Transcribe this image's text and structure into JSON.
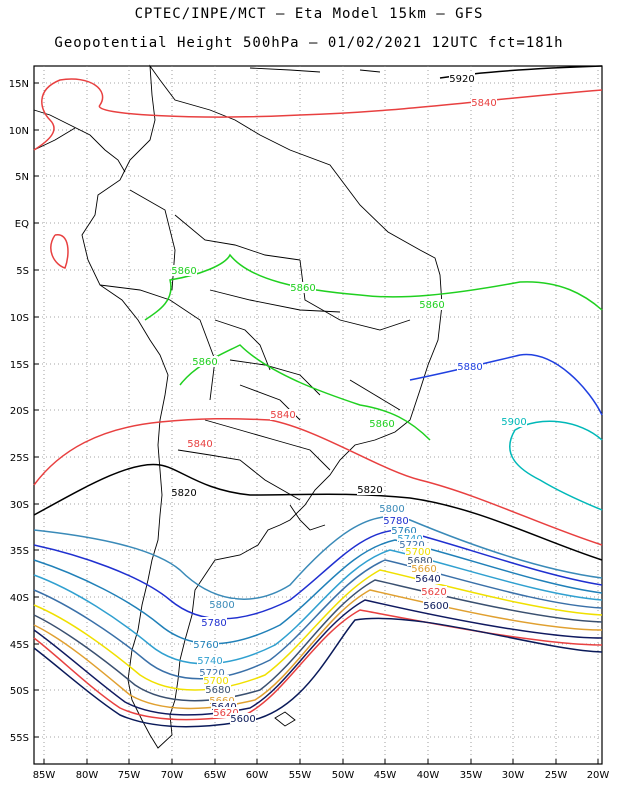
{
  "header": {
    "line1": "CPTEC/INPE/MCT – Eta Model 15km – GFS",
    "line2": "Geopotential Height 500hPa – 01/02/2021 12UTC fct=181h"
  },
  "map": {
    "lat_labels": [
      "15N",
      "10N",
      "5N",
      "EQ",
      "5S",
      "10S",
      "15S",
      "20S",
      "25S",
      "30S",
      "35S",
      "40S",
      "45S",
      "50S",
      "55S"
    ],
    "lon_labels": [
      "85W",
      "80W",
      "75W",
      "70W",
      "65W",
      "60W",
      "55W",
      "50W",
      "45W",
      "40W",
      "35W",
      "30W",
      "25W",
      "20W"
    ],
    "contour_levels": [
      {
        "value": "5920",
        "color": "#000000"
      },
      {
        "value": "5900",
        "color": "#00b8b8"
      },
      {
        "value": "5880",
        "color": "#2040e0"
      },
      {
        "value": "5860",
        "color": "#20d020"
      },
      {
        "value": "5840",
        "color": "#e84040"
      },
      {
        "value": "5820",
        "color": "#000000"
      },
      {
        "value": "5800",
        "color": "#3a8ab8"
      },
      {
        "value": "5780",
        "color": "#2030d0"
      },
      {
        "value": "5760",
        "color": "#2080b8"
      },
      {
        "value": "5740",
        "color": "#30a0d0"
      },
      {
        "value": "5720",
        "color": "#3a70a8"
      },
      {
        "value": "5700",
        "color": "#f0e000"
      },
      {
        "value": "5680",
        "color": "#3a5070"
      },
      {
        "value": "5660",
        "color": "#e0a030"
      },
      {
        "value": "5640",
        "color": "#101a60"
      },
      {
        "value": "5620",
        "color": "#e84040"
      },
      {
        "value": "5600",
        "color": "#0a1a5a"
      }
    ],
    "contour_labels": [
      {
        "text": "5920",
        "color": "#000000"
      },
      {
        "text": "5840",
        "color": "#e84040"
      },
      {
        "text": "5860",
        "color": "#20d020"
      },
      {
        "text": "5860",
        "color": "#20d020"
      },
      {
        "text": "5860",
        "color": "#20d020"
      },
      {
        "text": "5860",
        "color": "#20d020"
      },
      {
        "text": "5860",
        "color": "#20d020"
      },
      {
        "text": "5880",
        "color": "#2040e0"
      },
      {
        "text": "5900",
        "color": "#00b8b8"
      },
      {
        "text": "5840",
        "color": "#e84040"
      },
      {
        "text": "5840",
        "color": "#e84040"
      },
      {
        "text": "5820",
        "color": "#000000"
      },
      {
        "text": "5820",
        "color": "#000000"
      },
      {
        "text": "5800",
        "color": "#3a8ab8"
      },
      {
        "text": "5780",
        "color": "#2030d0"
      },
      {
        "text": "5760",
        "color": "#2080b8"
      },
      {
        "text": "5740",
        "color": "#30a0d0"
      },
      {
        "text": "5720",
        "color": "#3a70a8"
      },
      {
        "text": "5700",
        "color": "#f0e000"
      },
      {
        "text": "5680",
        "color": "#3a5070"
      },
      {
        "text": "5660",
        "color": "#e0a030"
      },
      {
        "text": "5640",
        "color": "#101a60"
      },
      {
        "text": "5620",
        "color": "#e84040"
      },
      {
        "text": "5600",
        "color": "#0a1a5a"
      },
      {
        "text": "5800",
        "color": "#3a8ab8"
      },
      {
        "text": "5780",
        "color": "#2030d0"
      },
      {
        "text": "5760",
        "color": "#2080b8"
      },
      {
        "text": "5740",
        "color": "#30a0d0"
      },
      {
        "text": "5720",
        "color": "#3a70a8"
      },
      {
        "text": "5700",
        "color": "#f0e000"
      },
      {
        "text": "5680",
        "color": "#3a5070"
      },
      {
        "text": "5660",
        "color": "#e0a030"
      },
      {
        "text": "5640",
        "color": "#101a60"
      },
      {
        "text": "5620",
        "color": "#e84040"
      },
      {
        "text": "5600",
        "color": "#0a1a5a"
      }
    ]
  }
}
